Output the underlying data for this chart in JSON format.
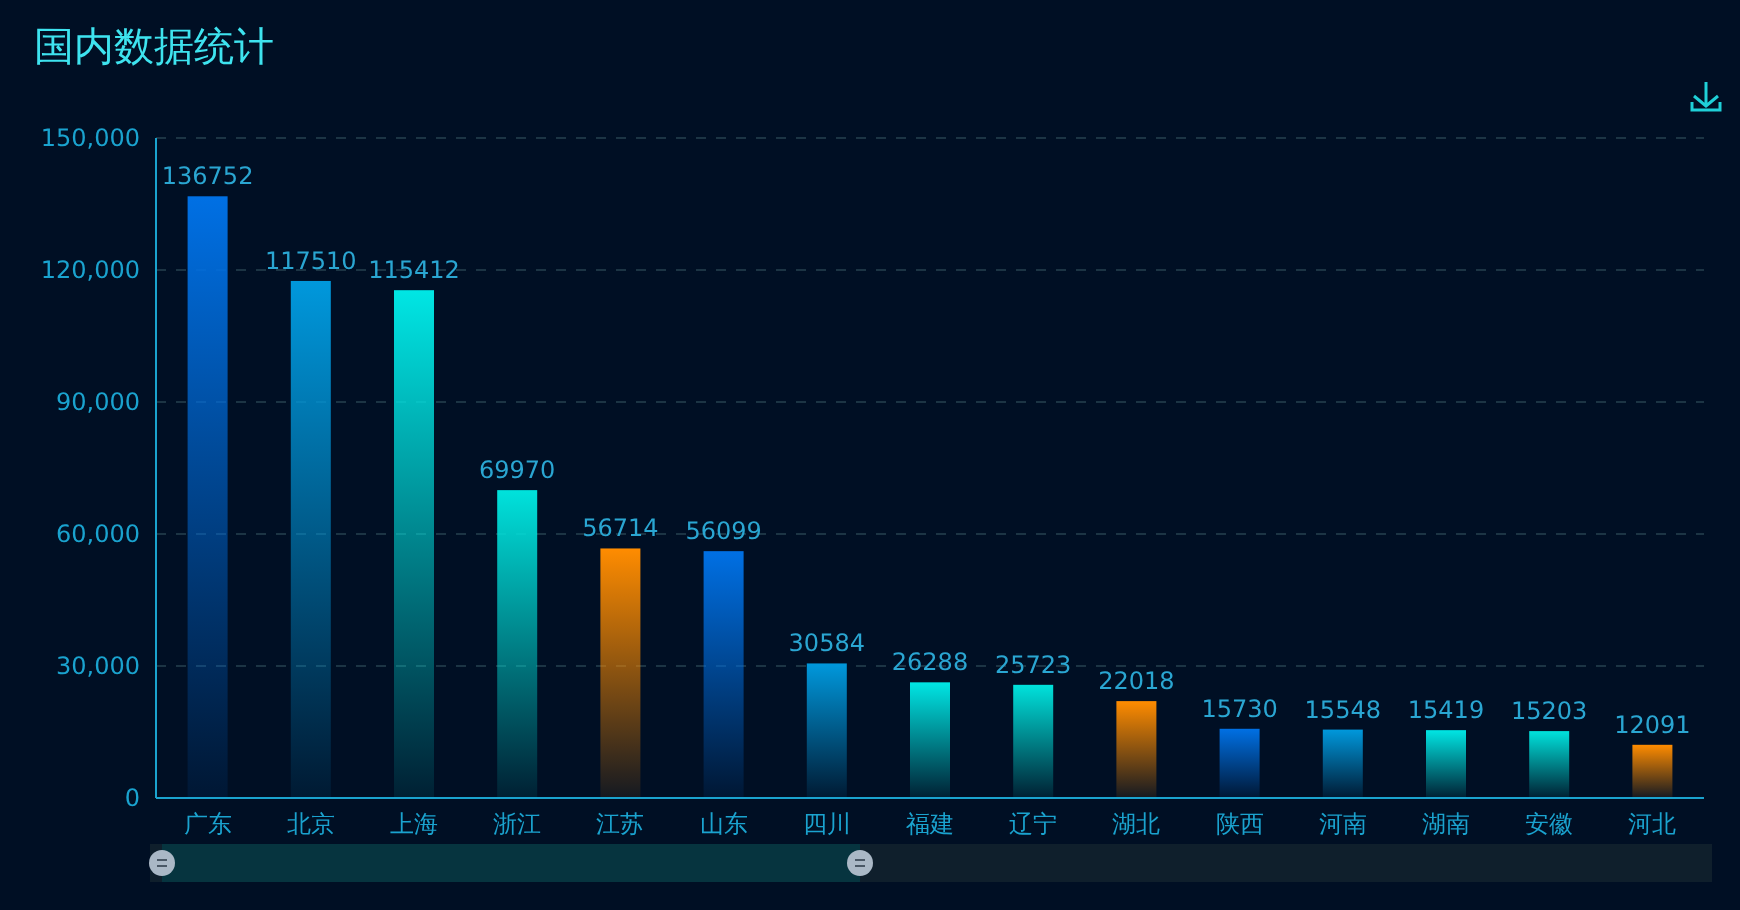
{
  "chart_data": {
    "type": "bar",
    "title": "国内数据统计",
    "categories": [
      "广东",
      "北京",
      "上海",
      "浙江",
      "江苏",
      "山东",
      "四川",
      "福建",
      "辽宁",
      "湖北",
      "陕西",
      "河南",
      "湖南",
      "安徽",
      "河北"
    ],
    "values": [
      136752,
      117510,
      115412,
      69970,
      56714,
      56099,
      30584,
      26288,
      25723,
      22018,
      15730,
      15548,
      15419,
      15203,
      12091
    ],
    "colors": [
      "#0070e4",
      "#0098dc",
      "#00e6e4",
      "#00e2dc",
      "#ff8c00",
      "#0070e4",
      "#0098dc",
      "#00e6e4",
      "#00e2dc",
      "#ff8c00",
      "#0070e4",
      "#0098dc",
      "#00e6e4",
      "#00e2dc",
      "#ff8c00"
    ],
    "ylim": [
      0,
      150000
    ],
    "yticks": [
      0,
      {
        "value": 30000,
        "label": "30,000"
      },
      {
        "value": 60000,
        "label": "60,000"
      },
      {
        "value": 90000,
        "label": "90,000"
      },
      {
        "value": 120000,
        "label": "120,000"
      },
      {
        "value": 150000,
        "label": "150,000"
      }
    ],
    "grid": "y",
    "data_labels": true
  }
}
